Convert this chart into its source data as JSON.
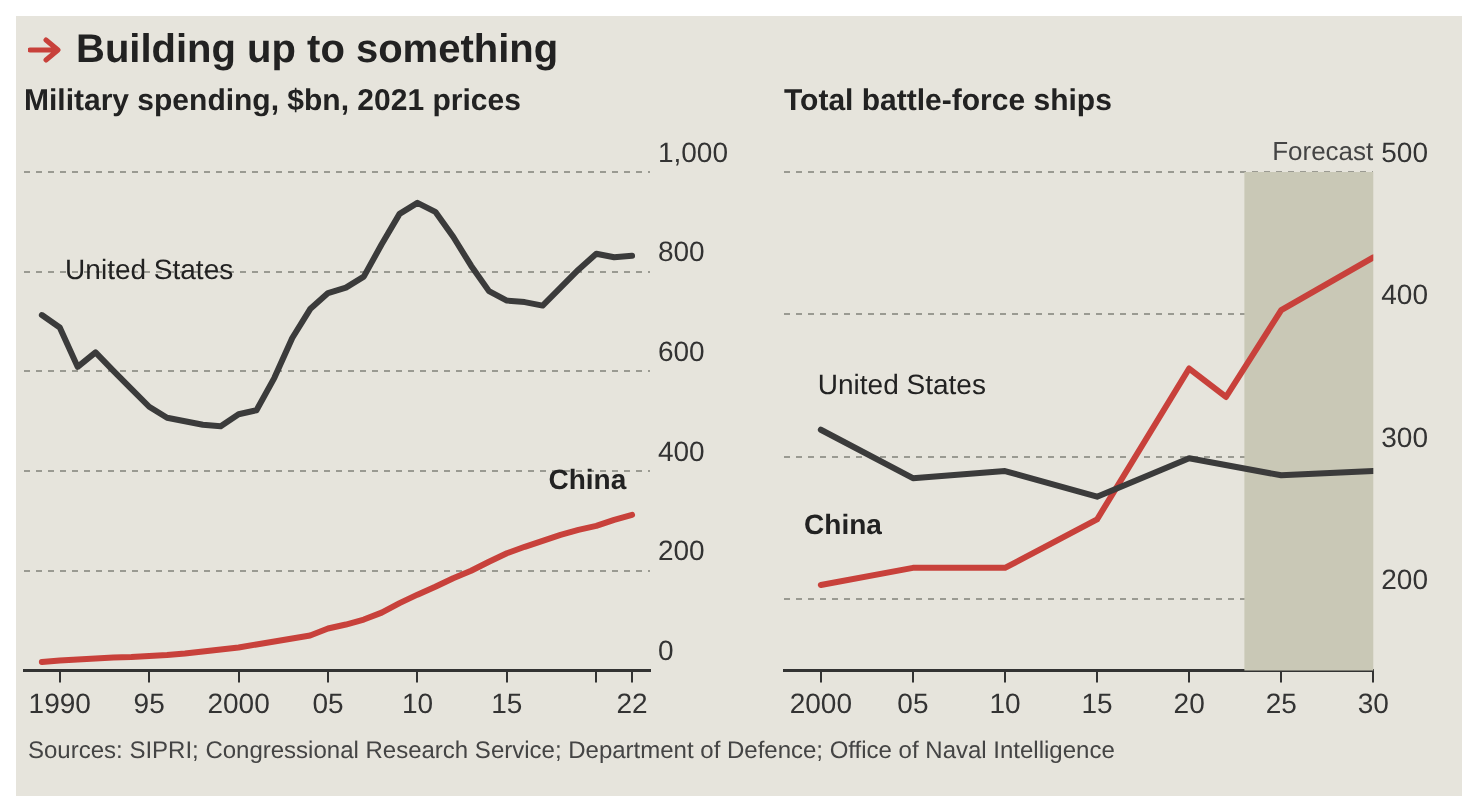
{
  "chart_data": [
    {
      "type": "line",
      "title": "Building up to something",
      "subtitle": "Military spending, $bn, 2021 prices",
      "x": [
        1989,
        1990,
        1991,
        1992,
        1993,
        1994,
        1995,
        1996,
        1997,
        1998,
        1999,
        2000,
        2001,
        2002,
        2003,
        2004,
        2005,
        2006,
        2007,
        2008,
        2009,
        2010,
        2011,
        2012,
        2013,
        2014,
        2015,
        2016,
        2017,
        2018,
        2019,
        2020,
        2021,
        2022
      ],
      "series": [
        {
          "name": "United States",
          "color": "#3b3b3b",
          "values": [
            713,
            688,
            609,
            638,
            601,
            565,
            529,
            507,
            500,
            493,
            490,
            514,
            522,
            587,
            667,
            725,
            757,
            768,
            790,
            855,
            916,
            938,
            920,
            870,
            812,
            761,
            742,
            739,
            732,
            768,
            804,
            836,
            829,
            832
          ]
        },
        {
          "name": "China",
          "color": "#c8413b",
          "values": [
            17,
            20,
            22,
            24,
            26,
            27,
            29,
            31,
            34,
            38,
            42,
            46,
            52,
            58,
            64,
            70,
            84,
            92,
            102,
            116,
            135,
            152,
            168,
            185,
            200,
            218,
            235,
            248,
            260,
            272,
            282,
            290,
            302,
            312
          ]
        }
      ],
      "xlim": [
        1988,
        2023
      ],
      "xticks": [
        {
          "value": 1990,
          "label": "1990"
        },
        {
          "value": 1995,
          "label": "95"
        },
        {
          "value": 2000,
          "label": "2000"
        },
        {
          "value": 2005,
          "label": "05"
        },
        {
          "value": 2010,
          "label": "10"
        },
        {
          "value": 2015,
          "label": "15"
        },
        {
          "value": 2020,
          "label": null
        },
        {
          "value": 2022,
          "label": "22"
        }
      ],
      "ylim": [
        0,
        1000
      ],
      "yticks": [
        0,
        200,
        400,
        600,
        800,
        {
          "value": 1000,
          "label": "1,000"
        }
      ],
      "grid": "y",
      "legend": false,
      "marker": "none",
      "line_style": "solid",
      "annotations": [
        "Sources: SIPRI; Congressional Research Service; Department of Defence; Office of Naval Intelligence"
      ]
    },
    {
      "type": "line",
      "title": "Total battle-force ships",
      "series": [
        {
          "name": "United States",
          "color": "#3b3b3b",
          "x": [
            2000,
            2005,
            2010,
            2015,
            2020,
            2025,
            2030
          ],
          "values": [
            319,
            285,
            290,
            272,
            299,
            287,
            290
          ]
        },
        {
          "name": "China",
          "color": "#c8413b",
          "x": [
            2000,
            2005,
            2010,
            2015,
            2020,
            2022,
            2025,
            2030
          ],
          "values": [
            210,
            222,
            222,
            256,
            362,
            342,
            403,
            440
          ]
        }
      ],
      "xlim": [
        1998,
        2030
      ],
      "xticks": [
        {
          "value": 2000,
          "label": "2000"
        },
        {
          "value": 2005,
          "label": "05"
        },
        {
          "value": 2010,
          "label": "10"
        },
        {
          "value": 2015,
          "label": "15"
        },
        {
          "value": 2020,
          "label": "20"
        },
        {
          "value": 2025,
          "label": "25"
        },
        {
          "value": 2030,
          "label": "30"
        }
      ],
      "ylim": [
        150,
        500
      ],
      "yticks": [
        200,
        300,
        400,
        500
      ],
      "bands": [
        {
          "axis": "x",
          "from": 2023,
          "to": 2030,
          "label": "Forecast",
          "color": "#c9c8b6"
        }
      ],
      "grid": "y",
      "legend": false,
      "marker": "none",
      "line_style": "solid"
    }
  ]
}
